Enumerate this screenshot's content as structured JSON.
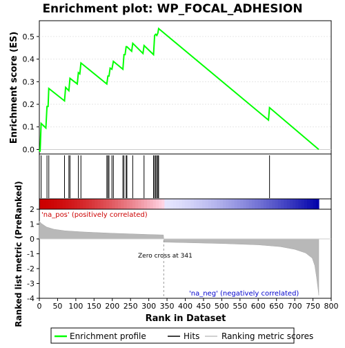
{
  "chart_data": {
    "type": "line",
    "title": "Enrichment plot: WP_FOCAL_ADHESION",
    "es_panel": {
      "ylabel": "Enrichment score (ES)",
      "ylim": [
        -0.02,
        0.57
      ],
      "yticks": [
        "0.0",
        "0.1",
        "0.2",
        "0.3",
        "0.4",
        "0.5"
      ],
      "ytick_values": [
        0.0,
        0.1,
        0.2,
        0.3,
        0.4,
        0.5
      ],
      "series": [
        {
          "name": "Enrichment profile",
          "color": "#00ff00",
          "x": [
            0,
            2,
            5,
            18,
            21,
            24,
            26,
            69,
            72,
            81,
            84,
            104,
            107,
            111,
            114,
            185,
            188,
            191,
            194,
            199,
            203,
            229,
            232,
            235,
            238,
            240,
            253,
            256,
            284,
            287,
            313,
            316,
            319,
            322,
            325,
            327,
            628,
            631,
            766
          ],
          "y": [
            0.0,
            -0.01,
            0.115,
            0.095,
            0.19,
            0.19,
            0.27,
            0.215,
            0.275,
            0.26,
            0.315,
            0.29,
            0.34,
            0.335,
            0.383,
            0.29,
            0.325,
            0.325,
            0.36,
            0.355,
            0.39,
            0.355,
            0.42,
            0.42,
            0.455,
            0.455,
            0.435,
            0.47,
            0.425,
            0.46,
            0.42,
            0.505,
            0.51,
            0.505,
            0.515,
            0.535,
            0.13,
            0.185,
            0.0
          ]
        }
      ]
    },
    "hits": [
      5,
      21,
      26,
      69,
      81,
      84,
      107,
      114,
      185,
      188,
      191,
      199,
      203,
      229,
      232,
      238,
      240,
      256,
      287,
      313,
      316,
      319,
      322,
      325,
      327,
      631
    ],
    "metric_panel": {
      "ylabel": "Ranked list metric (PreRanked)",
      "xlabel": "Rank in Dataset",
      "xlim": [
        0,
        800
      ],
      "ylim": [
        -4,
        2
      ],
      "xticks": [
        "0",
        "50",
        "100",
        "150",
        "200",
        "250",
        "300",
        "350",
        "400",
        "450",
        "500",
        "550",
        "600",
        "650",
        "700",
        "750",
        "800"
      ],
      "xtick_values": [
        0,
        50,
        100,
        150,
        200,
        250,
        300,
        350,
        400,
        450,
        500,
        550,
        600,
        650,
        700,
        750,
        800
      ],
      "yticks": [
        "2",
        "1",
        "0",
        "-1",
        "-2",
        "-3",
        "-4"
      ],
      "ytick_values": [
        2,
        1,
        0,
        -1,
        -2,
        -3,
        -4
      ],
      "n_genes": 766,
      "zero_cross": 341,
      "metric_curve": {
        "rank": [
          0,
          5,
          20,
          40,
          70,
          120,
          200,
          300,
          340,
          342,
          400,
          500,
          600,
          660,
          700,
          730,
          748,
          755,
          760,
          764,
          766
        ],
        "value": [
          1.2,
          1.05,
          0.8,
          0.65,
          0.55,
          0.47,
          0.38,
          0.3,
          0.27,
          -0.22,
          -0.25,
          -0.31,
          -0.4,
          -0.52,
          -0.7,
          -0.95,
          -1.3,
          -1.8,
          -2.6,
          -3.4,
          -3.8
        ]
      },
      "annotations": {
        "pos": "'na_pos' (positively correlated)",
        "neg": "'na_neg' (negatively correlated)",
        "zero": "Zero cross at 341"
      }
    },
    "legend": [
      "Enrichment profile",
      "Hits",
      "Ranking metric scores"
    ],
    "colors": {
      "profile": "#00ff00",
      "metric": "#b8b8b8",
      "pos": "#cc0000",
      "neg": "#0000aa",
      "pos_text": "#cc0000",
      "neg_text": "#0000cc"
    }
  }
}
